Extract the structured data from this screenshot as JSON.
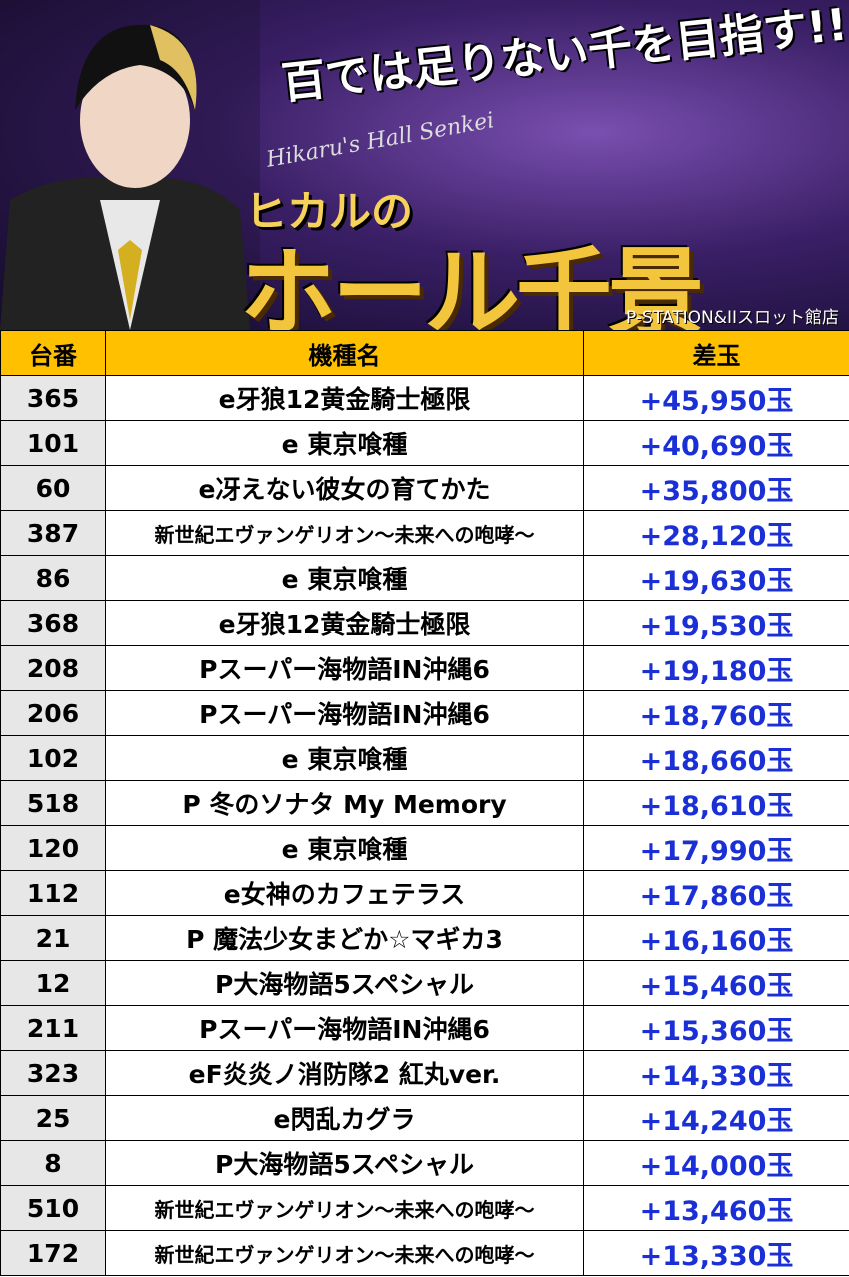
{
  "banner": {
    "catchphrase": "百では足りない千を目指す!!",
    "subtitle": "Hikaru's Hall Senkei",
    "owner": "ヒカルの",
    "title": "ホール千景",
    "store": "P-STATION&IIスロット館店"
  },
  "table": {
    "header": [
      "台番",
      "機種名",
      "差玉"
    ],
    "rows": [
      [
        "365",
        "e牙狼12黄金騎士極限",
        "+45,950玉"
      ],
      [
        "101",
        "e 東京喰種",
        "+40,690玉"
      ],
      [
        "60",
        "e冴えない彼女の育てかた",
        "+35,800玉"
      ],
      [
        "387",
        "新世紀エヴァンゲリオン～未来への咆哮～",
        "+28,120玉"
      ],
      [
        "86",
        "e 東京喰種",
        "+19,630玉"
      ],
      [
        "368",
        "e牙狼12黄金騎士極限",
        "+19,530玉"
      ],
      [
        "208",
        "Pスーパー海物語IN沖縄6",
        "+19,180玉"
      ],
      [
        "206",
        "Pスーパー海物語IN沖縄6",
        "+18,760玉"
      ],
      [
        "102",
        "e 東京喰種",
        "+18,660玉"
      ],
      [
        "518",
        "P 冬のソナタ My Memory",
        "+18,610玉"
      ],
      [
        "120",
        "e 東京喰種",
        "+17,990玉"
      ],
      [
        "112",
        "e女神のカフェテラス",
        "+17,860玉"
      ],
      [
        "21",
        "P 魔法少女まどか☆マギカ3",
        "+16,160玉"
      ],
      [
        "12",
        "P大海物語5スペシャル",
        "+15,460玉"
      ],
      [
        "211",
        "Pスーパー海物語IN沖縄6",
        "+15,360玉"
      ],
      [
        "323",
        "eF炎炎ノ消防隊2 紅丸ver.",
        "+14,330玉"
      ],
      [
        "25",
        "e閃乱カグラ",
        "+14,240玉"
      ],
      [
        "8",
        "P大海物語5スペシャル",
        "+14,000玉"
      ],
      [
        "510",
        "新世紀エヴァンゲリオン～未来への咆哮～",
        "+13,460玉"
      ],
      [
        "172",
        "新世紀エヴァンゲリオン～未来への咆哮～",
        "+13,330玉"
      ]
    ]
  }
}
